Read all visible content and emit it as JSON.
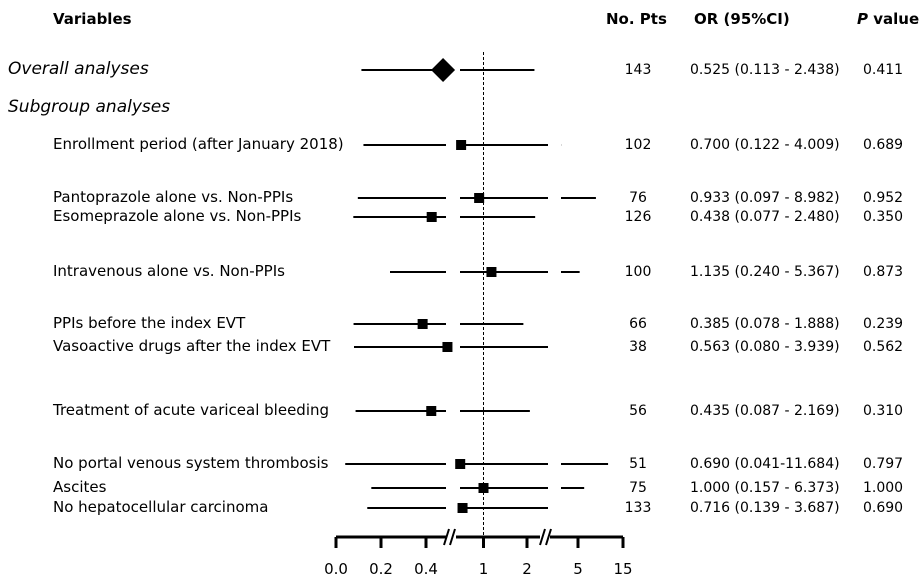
{
  "headers": {
    "variables": "Variables",
    "no_pts": "No. Pts",
    "or_ci": "OR (95%CI)",
    "p_italic": "P",
    "p_rest": " value"
  },
  "sections": {
    "overall": "Overall analyses",
    "subgroup": "Subgroup analyses"
  },
  "chart_data": {
    "type": "forest",
    "x_scale": "broken-axis",
    "x_ticks": [
      "0.0",
      "0.2",
      "0.4",
      "1",
      "2",
      "5",
      "15"
    ],
    "reference_line": 1,
    "rows": [
      {
        "label": "Overall analyses",
        "n": "143",
        "or_text": "0.525 (0.113 - 2.438)",
        "p": "0.411",
        "or": 0.525,
        "lo": 0.113,
        "hi": 2.438,
        "overall": true
      },
      {
        "label": "Enrollment period (after January 2018)",
        "n": "102",
        "or_text": "0.700 (0.122 - 4.009)",
        "p": "0.689",
        "or": 0.7,
        "lo": 0.122,
        "hi": 4.009
      },
      {
        "label": "Pantoprazole alone vs. Non-PPIs",
        "n": "76",
        "or_text": "0.933 (0.097 - 8.982)",
        "p": "0.952",
        "or": 0.933,
        "lo": 0.097,
        "hi": 8.982
      },
      {
        "label": "Esomeprazole alone vs. Non-PPIs",
        "n": "126",
        "or_text": "0.438 (0.077 - 2.480)",
        "p": "0.350",
        "or": 0.438,
        "lo": 0.077,
        "hi": 2.48
      },
      {
        "label": "Intravenous alone vs. Non-PPIs",
        "n": "100",
        "or_text": "1.135 (0.240 - 5.367)",
        "p": "0.873",
        "or": 1.135,
        "lo": 0.24,
        "hi": 5.367
      },
      {
        "label": "PPIs before the index EVT",
        "n": "66",
        "or_text": "0.385 (0.078 - 1.888)",
        "p": "0.239",
        "or": 0.385,
        "lo": 0.078,
        "hi": 1.888
      },
      {
        "label": "Vasoactive drugs after the index EVT",
        "n": "38",
        "or_text": "0.563 (0.080 - 3.939)",
        "p": "0.562",
        "or": 0.563,
        "lo": 0.08,
        "hi": 3.939
      },
      {
        "label": "Treatment of acute variceal bleeding",
        "n": "56",
        "or_text": "0.435 (0.087 - 2.169)",
        "p": "0.310",
        "or": 0.435,
        "lo": 0.087,
        "hi": 2.169
      },
      {
        "label": "No portal venous system thrombosis",
        "n": "51",
        "or_text": "0.690 (0.041-11.684)",
        "p": "0.797",
        "or": 0.69,
        "lo": 0.041,
        "hi": 11.684
      },
      {
        "label": "Ascites",
        "n": "75",
        "or_text": "1.000 (0.157 - 6.373)",
        "p": "1.000",
        "or": 1.0,
        "lo": 0.157,
        "hi": 6.373
      },
      {
        "label": "No hepatocellular carcinoma",
        "n": "133",
        "or_text": "0.716 (0.139 - 3.687)",
        "p": "0.690",
        "or": 0.716,
        "lo": 0.139,
        "hi": 3.687
      }
    ]
  }
}
